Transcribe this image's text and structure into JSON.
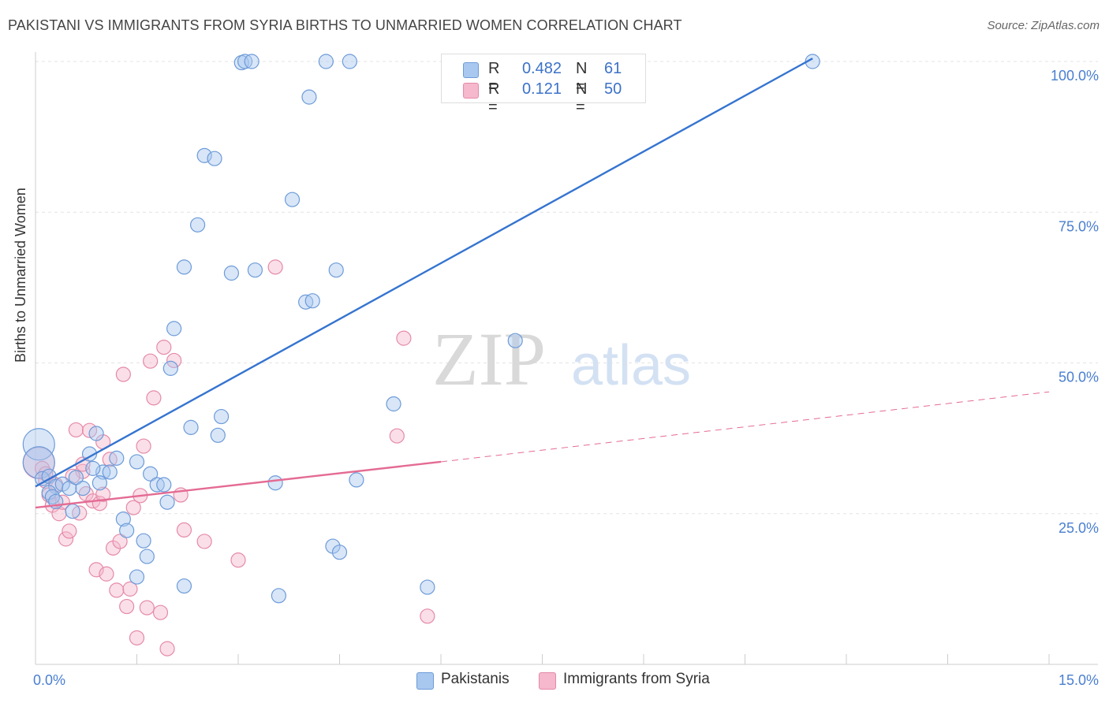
{
  "title": "PAKISTANI VS IMMIGRANTS FROM SYRIA BIRTHS TO UNMARRIED WOMEN CORRELATION CHART",
  "source": "Source: ZipAtlas.com",
  "watermark": {
    "zip": "ZIP",
    "atlas": "atlas"
  },
  "colors": {
    "blue_fill": "#a9c8f0",
    "blue_stroke": "#6d9bd8",
    "blue_line": "#3574d0",
    "pink_fill": "#f5b8cc",
    "pink_stroke": "#e58aa8",
    "pink_line": "#e46b93",
    "tick_label": "#4a7fd0",
    "grid": "#e3e3e3"
  },
  "legend_stats": [
    {
      "key_r": "R =",
      "r": "0.482",
      "key_n": "N =",
      "n": "61",
      "color": "#a9c8f0",
      "stroke": "#6d9bd8"
    },
    {
      "key_r": "R =",
      "r": "0.121",
      "key_n": "N =",
      "n": "50",
      "color": "#f5b8cc",
      "stroke": "#e58aa8"
    }
  ],
  "legend_bottom": [
    {
      "label": "Pakistanis",
      "color": "#a9c8f0",
      "stroke": "#6d9bd8"
    },
    {
      "label": "Immigrants from Syria",
      "color": "#f5b8cc",
      "stroke": "#e58aa8"
    }
  ],
  "chart_data": {
    "type": "scatter",
    "title": "PAKISTANI VS IMMIGRANTS FROM SYRIA BIRTHS TO UNMARRIED WOMEN CORRELATION CHART",
    "xlabel": "",
    "ylabel": "Births to Unmarried Women",
    "xlim": [
      0,
      15
    ],
    "ylim": [
      0,
      100
    ],
    "x_tick_labels": [
      "0.0%",
      "15.0%"
    ],
    "y_ticks": [
      25,
      50,
      75,
      100
    ],
    "y_tick_labels": [
      "25.0%",
      "50.0%",
      "75.0%",
      "100.0%"
    ],
    "series": [
      {
        "name": "Pakistanis",
        "regression": {
          "x": [
            0,
            11.5
          ],
          "y": [
            29.5,
            100.5
          ],
          "extend_to": null
        },
        "points": [
          [
            0.05,
            36.5,
            1
          ],
          [
            0.05,
            33.5,
            1
          ],
          [
            0.1,
            30.8,
            0
          ],
          [
            0.2,
            31.2,
            0
          ],
          [
            0.3,
            29.5,
            0
          ],
          [
            0.2,
            28.5,
            0
          ],
          [
            0.25,
            27.8,
            0
          ],
          [
            0.3,
            27,
            0
          ],
          [
            0.4,
            29.9,
            0
          ],
          [
            0.5,
            29.2,
            0
          ],
          [
            0.55,
            25.4,
            0
          ],
          [
            0.6,
            31,
            0
          ],
          [
            0.7,
            29.2,
            0
          ],
          [
            0.8,
            34.9,
            0
          ],
          [
            0.9,
            38.3,
            0
          ],
          [
            1.0,
            31.9,
            0
          ],
          [
            0.95,
            30.1,
            0
          ],
          [
            0.85,
            32.5,
            0
          ],
          [
            1.1,
            31.9,
            0
          ],
          [
            1.2,
            34.2,
            0
          ],
          [
            1.3,
            24.1,
            0
          ],
          [
            1.35,
            22.2,
            0
          ],
          [
            1.5,
            33.6,
            0
          ],
          [
            1.6,
            20.5,
            0
          ],
          [
            1.65,
            17.9,
            0
          ],
          [
            1.7,
            31.6,
            0
          ],
          [
            1.8,
            29.8,
            0
          ],
          [
            1.9,
            29.8,
            0
          ],
          [
            1.95,
            26.9,
            0
          ],
          [
            2.0,
            49.1,
            0
          ],
          [
            2.05,
            55.7,
            0
          ],
          [
            2.2,
            65.9,
            0
          ],
          [
            2.3,
            39.3,
            0
          ],
          [
            2.4,
            72.9,
            0
          ],
          [
            2.5,
            84.4,
            0
          ],
          [
            2.65,
            83.9,
            0
          ],
          [
            2.7,
            38,
            0
          ],
          [
            2.75,
            41.1,
            0
          ],
          [
            2.9,
            64.9,
            0
          ],
          [
            3.05,
            99.8,
            0
          ],
          [
            3.1,
            100,
            0
          ],
          [
            3.2,
            100,
            0
          ],
          [
            3.25,
            65.4,
            0
          ],
          [
            3.6,
            11.4,
            0
          ],
          [
            3.55,
            30.1,
            0
          ],
          [
            3.8,
            77.1,
            0
          ],
          [
            4.0,
            60.1,
            0
          ],
          [
            4.1,
            60.3,
            0
          ],
          [
            4.05,
            94.1,
            0
          ],
          [
            4.3,
            100,
            0
          ],
          [
            4.4,
            19.6,
            0
          ],
          [
            4.5,
            18.6,
            0
          ],
          [
            4.45,
            65.4,
            0
          ],
          [
            4.65,
            100,
            0
          ],
          [
            4.75,
            30.6,
            0
          ],
          [
            5.3,
            43.2,
            0
          ],
          [
            5.8,
            12.8,
            0
          ],
          [
            7.1,
            53.7,
            0
          ],
          [
            11.5,
            100,
            0
          ],
          [
            2.2,
            13,
            0
          ],
          [
            1.5,
            14.5,
            0
          ]
        ]
      },
      {
        "name": "Immigrants from Syria",
        "regression": {
          "x": [
            0,
            6
          ],
          "y": [
            26,
            33.6
          ],
          "extend_to": [
            15,
            45.2
          ]
        },
        "points": [
          [
            0.05,
            33.4,
            1
          ],
          [
            0.1,
            32.5,
            0
          ],
          [
            0.15,
            30.4,
            0
          ],
          [
            0.2,
            28.1,
            0
          ],
          [
            0.25,
            26.4,
            0
          ],
          [
            0.3,
            29.8,
            0
          ],
          [
            0.35,
            25,
            0
          ],
          [
            0.4,
            26.9,
            0
          ],
          [
            0.45,
            20.8,
            0
          ],
          [
            0.5,
            22.1,
            0
          ],
          [
            0.6,
            38.9,
            0
          ],
          [
            0.65,
            25.1,
            0
          ],
          [
            0.7,
            32,
            0
          ],
          [
            0.75,
            28.3,
            0
          ],
          [
            0.8,
            38.8,
            0
          ],
          [
            0.85,
            27.1,
            0
          ],
          [
            0.9,
            15.7,
            0
          ],
          [
            0.95,
            26.7,
            0
          ],
          [
            1.0,
            36.9,
            0
          ],
          [
            1.05,
            15,
            0
          ],
          [
            1.1,
            34,
            0
          ],
          [
            1.15,
            19.3,
            0
          ],
          [
            1.2,
            12.3,
            0
          ],
          [
            1.25,
            20.4,
            0
          ],
          [
            1.3,
            48.1,
            0
          ],
          [
            1.35,
            9.6,
            0
          ],
          [
            1.4,
            12.5,
            0
          ],
          [
            1.45,
            26,
            0
          ],
          [
            1.5,
            4.4,
            0
          ],
          [
            1.55,
            28,
            0
          ],
          [
            1.6,
            36.2,
            0
          ],
          [
            1.65,
            9.4,
            0
          ],
          [
            1.7,
            50.3,
            0
          ],
          [
            1.75,
            44.2,
            0
          ],
          [
            1.85,
            8.6,
            0
          ],
          [
            1.9,
            52.6,
            0
          ],
          [
            1.95,
            2.6,
            0
          ],
          [
            2.05,
            50.4,
            0
          ],
          [
            2.15,
            28.1,
            0
          ],
          [
            2.2,
            22.3,
            0
          ],
          [
            2.5,
            20.4,
            0
          ],
          [
            3.0,
            17.3,
            0
          ],
          [
            3.55,
            65.9,
            0
          ],
          [
            5.35,
            37.9,
            0
          ],
          [
            5.45,
            54.1,
            0
          ],
          [
            5.8,
            8,
            0
          ],
          [
            0.15,
            31.6,
            0
          ],
          [
            0.7,
            33.2,
            0
          ],
          [
            1.0,
            28.2,
            0
          ],
          [
            0.55,
            31.2,
            0
          ]
        ]
      }
    ]
  }
}
